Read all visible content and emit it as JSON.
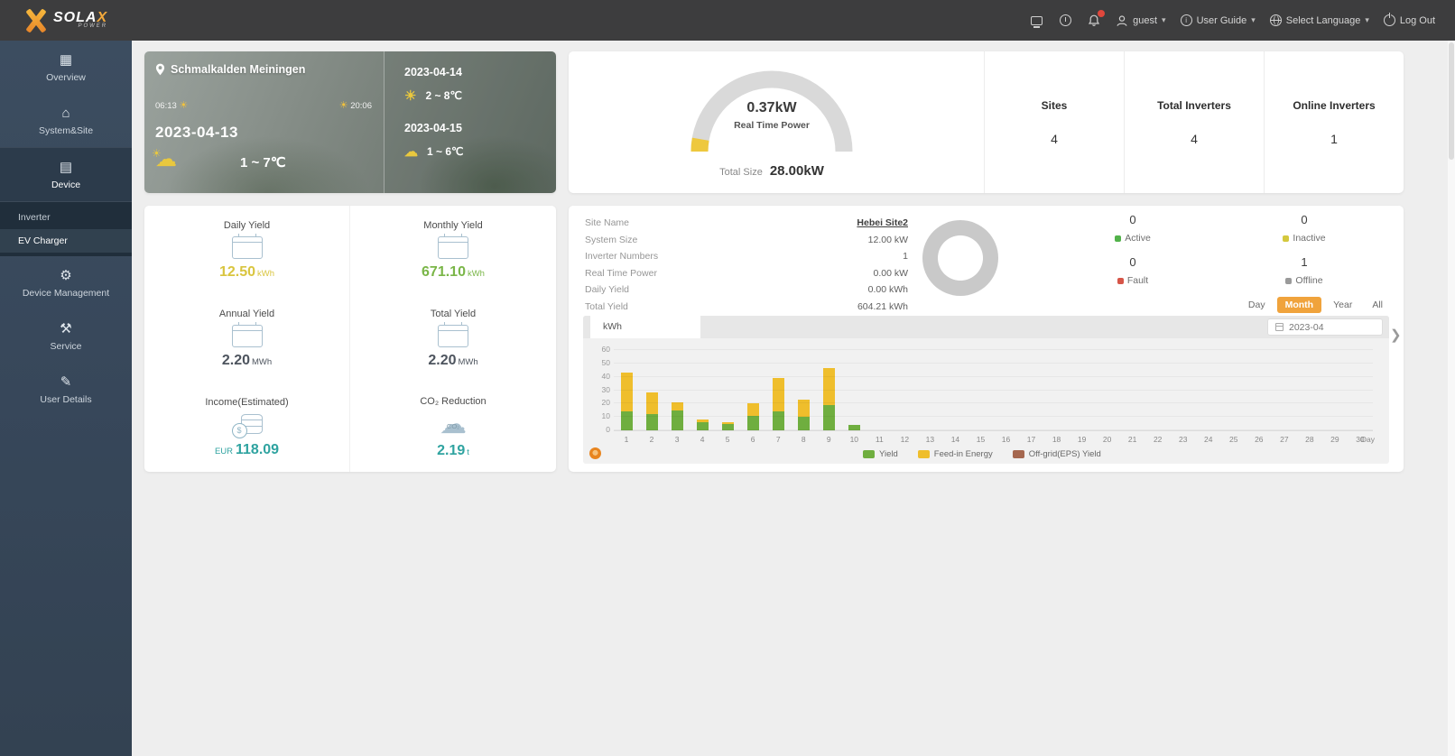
{
  "navbar": {
    "brand": "SOLA",
    "brand_accent": "X",
    "brand_sub": "POWER",
    "user": "guest",
    "user_guide": "User Guide",
    "language": "Select Language",
    "logout": "Log Out",
    "notification_badge_color": "#e0473c"
  },
  "sidebar": {
    "items": [
      {
        "label": "Overview",
        "icon": "overview-icon",
        "glyph": "▦"
      },
      {
        "label": "System&Site",
        "icon": "site-icon",
        "glyph": "⌂"
      },
      {
        "label": "Device",
        "icon": "device-icon",
        "glyph": "▤",
        "active": true,
        "submenu": [
          {
            "label": "Inverter"
          },
          {
            "label": "EV Charger",
            "active": true
          }
        ]
      },
      {
        "label": "Device Management",
        "icon": "device-management-icon",
        "glyph": "⚙"
      },
      {
        "label": "Service",
        "icon": "service-icon",
        "glyph": "⚒"
      },
      {
        "label": "User Details",
        "icon": "edit-pencil-icon",
        "glyph": "✎"
      }
    ]
  },
  "weather": {
    "location": "Schmalkalden Meiningen",
    "sunrise": "06:13",
    "sunset": "20:06",
    "date": "2023-04-13",
    "temp": "1 ~ 7℃",
    "forecast": [
      {
        "date": "2023-04-14",
        "icon": "sunny-icon",
        "glyph": "☀",
        "temp": "2 ~ 8℃"
      },
      {
        "date": "2023-04-15",
        "icon": "partly-cloudy-icon",
        "glyph": "☁",
        "temp": "1 ~ 6℃"
      }
    ]
  },
  "gauge": {
    "value": "0.37kW",
    "label": "Real Time Power",
    "total_label": "Total Size",
    "total_value": "28.00kW",
    "arc_color": "#d9d9d9",
    "fill_color": "#eec83e",
    "fraction": 0.055
  },
  "stats": [
    {
      "label": "Sites",
      "value": "4"
    },
    {
      "label": "Total Inverters",
      "value": "4"
    },
    {
      "label": "Online Inverters",
      "value": "1"
    }
  ],
  "yields": [
    {
      "label": "Daily Yield",
      "icon": "calendar-day-icon",
      "icon_type": "cal",
      "value": "12.50",
      "unit": "kWh",
      "color": "#d9c53f"
    },
    {
      "label": "Monthly Yield",
      "icon": "calendar-month-icon",
      "icon_type": "cal",
      "value": "671.10",
      "unit": "kWh",
      "color": "#7ab648"
    },
    {
      "label": "Annual Yield",
      "icon": "calendar-year-icon",
      "icon_type": "cal",
      "value": "2.20",
      "unit": "MWh",
      "color": "#4d545e"
    },
    {
      "label": "Total Yield",
      "icon": "calendar-total-icon",
      "icon_type": "cal",
      "value": "2.20",
      "unit": "MWh",
      "color": "#4d545e"
    },
    {
      "label": "Income(Estimated)",
      "icon": "coins-icon",
      "icon_type": "coins",
      "prefix": "EUR",
      "value": "118.09",
      "unit": "",
      "color": "#2fa3a0"
    },
    {
      "label": "CO₂ Reduction",
      "icon": "co2-cloud-icon",
      "icon_type": "co2",
      "value": "2.19",
      "unit": "t",
      "color": "#2fa3a0"
    }
  ],
  "site_info": {
    "rows": [
      {
        "label": "Site Name",
        "value": "Hebei Site2",
        "link": true
      },
      {
        "label": "System Size",
        "value": "12.00 kW"
      },
      {
        "label": "Inverter Numbers",
        "value": "1"
      },
      {
        "label": "Real Time Power",
        "value": "0.00 kW"
      },
      {
        "label": "Daily Yield",
        "value": "0.00 kWh"
      },
      {
        "label": "Total Yield",
        "value": "604.21 kWh"
      }
    ]
  },
  "donut": {
    "ring_color": "#c9c9c9"
  },
  "status": [
    {
      "label": "Active",
      "value": "0",
      "color": "#52b24a"
    },
    {
      "label": "Inactive",
      "value": "0",
      "color": "#d4c83e"
    },
    {
      "label": "Fault",
      "value": "0",
      "color": "#d65548"
    },
    {
      "label": "Offline",
      "value": "1",
      "color": "#9a9a9a"
    }
  ],
  "range_buttons": [
    {
      "label": "Day"
    },
    {
      "label": "Month",
      "active": true
    },
    {
      "label": "Year"
    },
    {
      "label": "All"
    }
  ],
  "range_active_color": "#f0a33c",
  "chart": {
    "tab": "kWh",
    "date": "2023-04",
    "axis_unit": "Day"
  },
  "chart_data": {
    "type": "bar",
    "stacked": true,
    "title": "",
    "xlabel": "Day",
    "ylabel": "kWh",
    "ylim": [
      0,
      60
    ],
    "yticks": [
      0,
      10,
      20,
      30,
      40,
      50,
      60
    ],
    "categories": [
      1,
      2,
      3,
      4,
      5,
      6,
      7,
      8,
      9,
      10,
      11,
      12,
      13,
      14,
      15,
      16,
      17,
      18,
      19,
      20,
      21,
      22,
      23,
      24,
      25,
      26,
      27,
      28,
      29,
      30
    ],
    "series": [
      {
        "name": "Yield",
        "color": "#6fae3f",
        "values": [
          14,
          12,
          15,
          6,
          5,
          11,
          14,
          10,
          19,
          4,
          0,
          0,
          0,
          0,
          0,
          0,
          0,
          0,
          0,
          0,
          0,
          0,
          0,
          0,
          0,
          0,
          0,
          0,
          0,
          0
        ]
      },
      {
        "name": "Feed-in Energy",
        "color": "#efbe2c",
        "values": [
          29,
          16,
          6,
          2,
          1,
          9,
          25,
          13,
          27,
          0,
          0,
          0,
          0,
          0,
          0,
          0,
          0,
          0,
          0,
          0,
          0,
          0,
          0,
          0,
          0,
          0,
          0,
          0,
          0,
          0
        ]
      },
      {
        "name": "Off-grid(EPS) Yield",
        "color": "#a5674f",
        "values": [
          0,
          0,
          0,
          0,
          0,
          0,
          0,
          0,
          0,
          0,
          0,
          0,
          0,
          0,
          0,
          0,
          0,
          0,
          0,
          0,
          0,
          0,
          0,
          0,
          0,
          0,
          0,
          0,
          0,
          0
        ]
      }
    ],
    "legend_position": "bottom"
  }
}
